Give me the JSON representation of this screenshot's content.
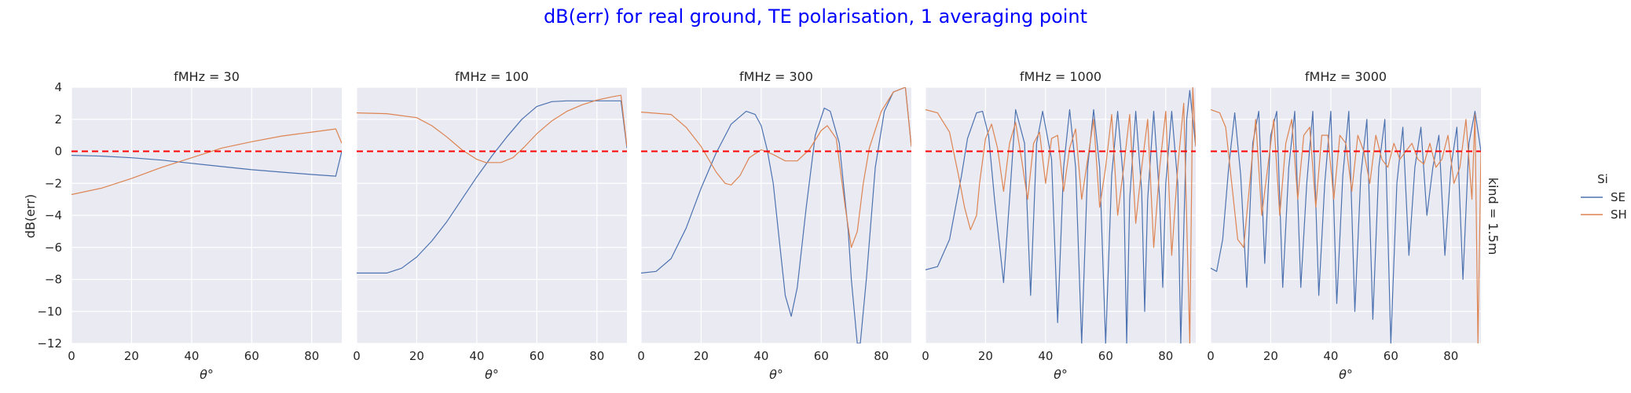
{
  "chart_data": {
    "type": "line",
    "title": "dB(err) for real ground, TE polarisation, 1 averaging point",
    "title_color": "#0000ff",
    "background": "#eaeaf2",
    "grid": true,
    "xlabel": "θ°",
    "ylabel": "dB(err)",
    "xlim": [
      0,
      90
    ],
    "ylim": [
      -12,
      4
    ],
    "xticks": [
      "0",
      "20",
      "40",
      "60",
      "80"
    ],
    "yticks": [
      "4",
      "2",
      "0",
      "−2",
      "−4",
      "−6",
      "−8",
      "−10",
      "−12"
    ],
    "row_label": "kind = 1.5m",
    "reference_line": {
      "y": 0,
      "color": "#ff0000",
      "style": "dashed"
    },
    "legend": {
      "title": "Si",
      "placement": "right",
      "entries": [
        {
          "name": "SE",
          "color": "#4c72b0"
        },
        {
          "name": "SH",
          "color": "#dd8452"
        }
      ]
    },
    "panels": [
      {
        "title": "fMHz = 30",
        "series": [
          {
            "name": "SE",
            "x": [
              0,
              10,
              20,
              30,
              40,
              50,
              60,
              70,
              80,
              88,
              90
            ],
            "y": [
              -0.25,
              -0.3,
              -0.4,
              -0.55,
              -0.75,
              -0.95,
              -1.15,
              -1.3,
              -1.45,
              -1.55,
              0.0
            ]
          },
          {
            "name": "SH",
            "x": [
              0,
              10,
              20,
              30,
              40,
              50,
              60,
              70,
              80,
              88,
              90
            ],
            "y": [
              -2.7,
              -2.3,
              -1.7,
              -1.0,
              -0.4,
              0.2,
              0.6,
              0.95,
              1.2,
              1.4,
              0.5
            ]
          }
        ]
      },
      {
        "title": "fMHz = 100",
        "series": [
          {
            "name": "SE",
            "x": [
              0,
              10,
              15,
              20,
              25,
              30,
              35,
              40,
              45,
              50,
              55,
              60,
              65,
              70,
              80,
              88,
              90
            ],
            "y": [
              -7.6,
              -7.6,
              -7.3,
              -6.6,
              -5.6,
              -4.4,
              -3.0,
              -1.6,
              -0.3,
              0.9,
              2.0,
              2.8,
              3.1,
              3.15,
              3.15,
              3.15,
              0.2
            ]
          },
          {
            "name": "SH",
            "x": [
              0,
              10,
              20,
              25,
              30,
              35,
              40,
              43,
              48,
              52,
              56,
              60,
              65,
              70,
              75,
              80,
              85,
              88,
              90
            ],
            "y": [
              2.4,
              2.35,
              2.1,
              1.6,
              0.9,
              0.1,
              -0.5,
              -0.7,
              -0.7,
              -0.4,
              0.3,
              1.1,
              1.9,
              2.5,
              2.9,
              3.2,
              3.4,
              3.5,
              0.3
            ]
          }
        ]
      },
      {
        "title": "fMHz = 300",
        "series": [
          {
            "name": "SE",
            "x": [
              0,
              5,
              10,
              15,
              20,
              25,
              30,
              35,
              38,
              40,
              42,
              44,
              46,
              48,
              50,
              52,
              55,
              58,
              61,
              63,
              66,
              69,
              70,
              72,
              73,
              75,
              78,
              81,
              84,
              88,
              90
            ],
            "y": [
              -7.6,
              -7.5,
              -6.7,
              -4.8,
              -2.3,
              -0.1,
              1.7,
              2.5,
              2.3,
              1.6,
              0.1,
              -2.0,
              -5.5,
              -9.0,
              -10.3,
              -8.5,
              -3.5,
              1.0,
              2.7,
              2.5,
              0.5,
              -5.0,
              -8.0,
              -12.0,
              -12.0,
              -8.0,
              -1.0,
              2.5,
              3.7,
              4.0,
              0.3
            ]
          },
          {
            "name": "SH",
            "x": [
              0,
              10,
              15,
              20,
              25,
              28,
              30,
              33,
              36,
              40,
              44,
              48,
              52,
              56,
              60,
              62,
              65,
              68,
              70,
              72,
              74,
              76,
              80,
              84,
              88,
              90
            ],
            "y": [
              2.45,
              2.3,
              1.5,
              0.3,
              -1.3,
              -2.0,
              -2.1,
              -1.5,
              -0.4,
              0.1,
              -0.2,
              -0.6,
              -0.6,
              0.1,
              1.3,
              1.6,
              0.8,
              -3.5,
              -6.0,
              -5.0,
              -2.0,
              0.2,
              2.5,
              3.7,
              4.0,
              0.3
            ]
          }
        ]
      },
      {
        "title": "fMHz = 1000",
        "series": [
          {
            "name": "SE",
            "x": [
              0,
              4,
              8,
              12,
              14,
              17,
              19,
              21,
              23,
              26,
              28,
              30,
              33,
              35,
              37,
              39,
              42,
              44,
              46,
              48,
              50,
              52,
              54,
              56,
              58,
              60,
              62,
              64,
              66,
              67,
              68,
              70,
              72,
              73,
              74,
              76,
              78,
              79,
              80,
              82,
              84,
              85,
              86,
              87,
              88,
              90
            ],
            "y": [
              -7.4,
              -7.2,
              -5.5,
              -1.5,
              0.8,
              2.4,
              2.5,
              1.0,
              -3.0,
              -8.2,
              -3.0,
              2.6,
              0.5,
              -9.0,
              0.5,
              2.5,
              -0.5,
              -10.7,
              -1.0,
              2.6,
              -1.0,
              -12.0,
              -1.0,
              2.6,
              -1.0,
              -12.0,
              -1.5,
              2.5,
              -2.0,
              -12.0,
              -3.0,
              2.5,
              -2.5,
              -10.0,
              -3.0,
              2.5,
              -3.0,
              -8.5,
              -2.0,
              2.5,
              -2.0,
              -12.0,
              -5.0,
              2.0,
              3.8,
              0.3
            ]
          },
          {
            "name": "SH",
            "x": [
              0,
              4,
              8,
              11,
              13,
              15,
              17,
              18,
              20,
              22,
              24,
              26,
              28,
              30,
              32,
              34,
              36,
              38,
              40,
              42,
              44,
              46,
              48,
              50,
              52,
              54,
              56,
              58,
              60,
              62,
              64,
              66,
              68,
              70,
              72,
              74,
              76,
              78,
              80,
              82,
              84,
              86,
              88,
              89,
              90
            ],
            "y": [
              2.6,
              2.4,
              1.2,
              -1.5,
              -3.5,
              -4.9,
              -4.0,
              -2.0,
              0.8,
              1.7,
              0.2,
              -2.5,
              0.5,
              1.8,
              -0.5,
              -3.0,
              0.5,
              1.2,
              -2.0,
              0.8,
              1.0,
              -2.5,
              0.2,
              1.4,
              -3.0,
              -0.5,
              2.0,
              -3.5,
              -1.0,
              2.3,
              -4.0,
              -1.0,
              2.3,
              -4.5,
              -1.0,
              2.0,
              -6.0,
              -1.0,
              2.5,
              -6.5,
              -1.0,
              3.0,
              -12.0,
              4.0,
              0.3
            ]
          }
        ]
      },
      {
        "title": "fMHz = 3000",
        "series": [
          {
            "name": "SE",
            "x": [
              0,
              2,
              4,
              6,
              8,
              10,
              12,
              14,
              16,
              18,
              20,
              22,
              24,
              26,
              28,
              30,
              32,
              34,
              36,
              38,
              40,
              42,
              44,
              46,
              48,
              50,
              52,
              54,
              56,
              58,
              60,
              62,
              64,
              66,
              68,
              70,
              72,
              74,
              76,
              78,
              80,
              82,
              84,
              86,
              88,
              90
            ],
            "y": [
              -7.3,
              -7.5,
              -5.5,
              -1.0,
              2.4,
              -1.5,
              -8.5,
              0.5,
              2.5,
              -7.0,
              1.0,
              2.5,
              -8.5,
              -1.0,
              2.5,
              -8.5,
              -2.0,
              2.5,
              -9.0,
              -2.0,
              2.5,
              -9.5,
              -1.5,
              2.5,
              -10.0,
              -1.5,
              2.0,
              -10.5,
              -1.0,
              2.0,
              -12.0,
              -2.0,
              1.5,
              -6.5,
              -1.0,
              1.5,
              -4.0,
              -1.0,
              1.0,
              -6.5,
              -1.0,
              1.5,
              -8.0,
              0.5,
              2.5,
              0.0
            ]
          },
          {
            "name": "SH",
            "x": [
              0,
              3,
              5,
              7,
              9,
              11,
              13,
              15,
              17,
              19,
              21,
              23,
              25,
              27,
              29,
              31,
              33,
              35,
              37,
              39,
              41,
              43,
              45,
              47,
              49,
              51,
              53,
              55,
              57,
              59,
              61,
              63,
              65,
              67,
              69,
              71,
              73,
              75,
              77,
              79,
              81,
              83,
              85,
              87,
              88,
              89,
              90
            ],
            "y": [
              2.6,
              2.4,
              1.5,
              -2.0,
              -5.5,
              -6.0,
              -2.0,
              2.0,
              -4.0,
              -1.0,
              2.0,
              -4.0,
              0.5,
              2.0,
              -3.0,
              1.0,
              1.5,
              -3.5,
              1.0,
              1.0,
              -3.0,
              1.0,
              0.5,
              -2.5,
              1.0,
              0.0,
              -2.0,
              1.0,
              -0.5,
              -1.0,
              0.5,
              -0.5,
              0.0,
              0.5,
              -0.5,
              -0.8,
              0.5,
              -1.0,
              -0.5,
              1.0,
              -2.0,
              -1.0,
              2.0,
              -3.0,
              2.3,
              -12.0,
              0.0
            ]
          }
        ]
      }
    ]
  }
}
